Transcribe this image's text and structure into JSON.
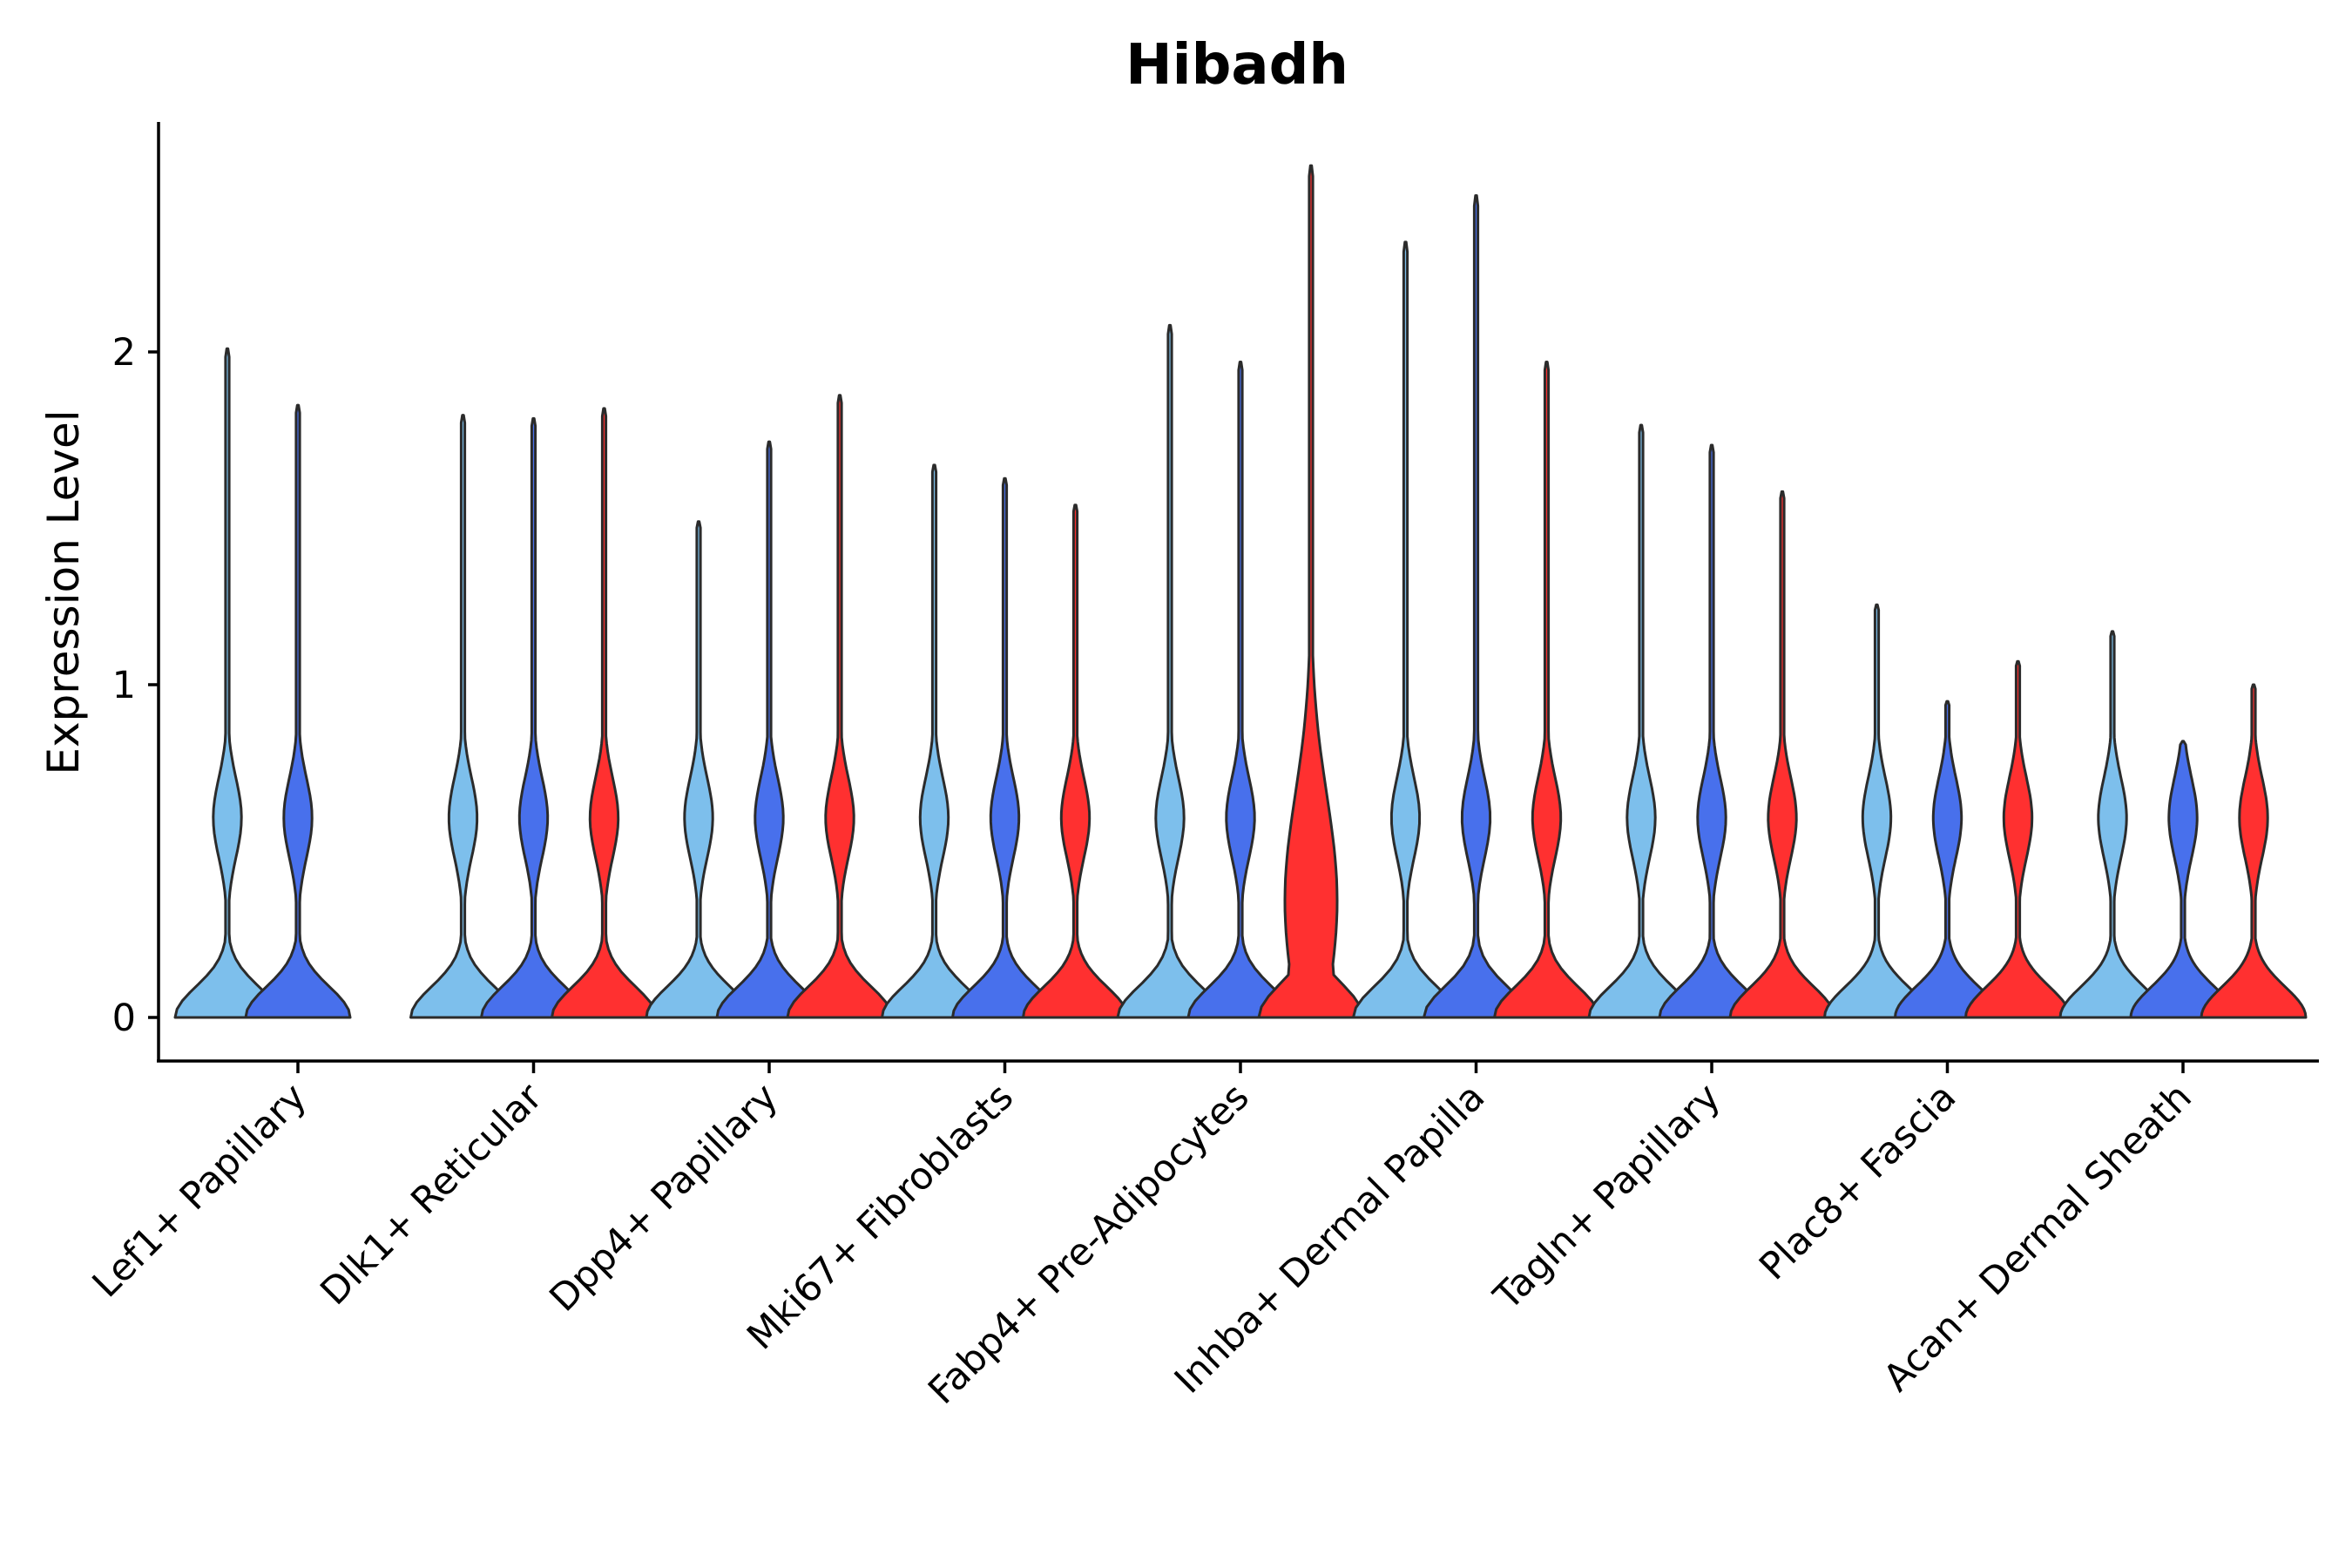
{
  "chart_data": {
    "type": "violin",
    "title": "Hibadh",
    "xlabel": "",
    "ylabel": "Expression Level",
    "ylim": [
      -0.13,
      2.7
    ],
    "yticks": [
      0,
      1,
      2
    ],
    "grid": false,
    "legend": "none",
    "categories": [
      "Lef1+ Papillary",
      "Dlk1+ Reticular",
      "Dpp4+ Papillary",
      "Mki67+ Fibroblasts",
      "Fabp4+ Pre-Adipocytes",
      "Inhba+ Dermal Papilla",
      "Tagln+ Papillary",
      "Plac8+ Fascia",
      "Acan+ Dermal Sheath"
    ],
    "series": [
      {
        "name": "Group 1",
        "color": "#7dbfec",
        "max": [
          2.01,
          1.81,
          1.49,
          1.66,
          2.08,
          2.33,
          1.78,
          1.24,
          1.16
        ]
      },
      {
        "name": "Group 2",
        "color": "#4870ec",
        "max": [
          1.84,
          1.8,
          1.73,
          1.62,
          1.97,
          2.47,
          1.72,
          0.95,
          0.83
        ]
      },
      {
        "name": "Group 3",
        "color": "#ff3030",
        "max": [
          null,
          1.83,
          1.87,
          1.54,
          2.56,
          1.97,
          1.58,
          1.07,
          1.0
        ]
      }
    ]
  }
}
